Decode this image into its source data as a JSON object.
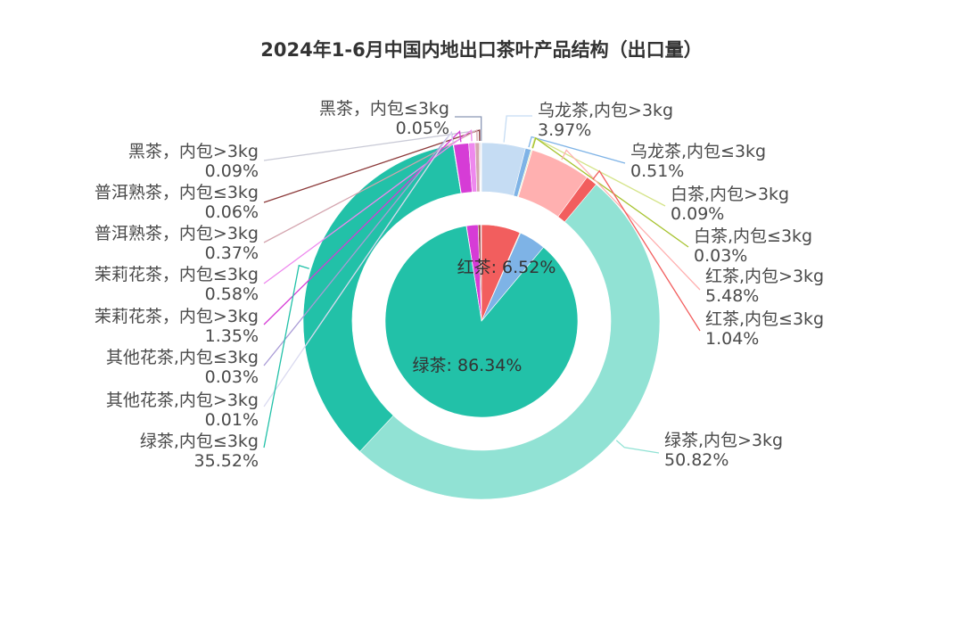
{
  "chart_data": {
    "type": "pie",
    "title": "2024年1-6月中国内地出口茶叶产品结构（出口量）",
    "legend": "none",
    "inner": [
      {
        "name": "黑茶",
        "value": 0.14,
        "color": "#8B6F5E"
      },
      {
        "name": "普洱熟茶",
        "value": 0.43,
        "color": "#9C4A4A"
      },
      {
        "name": "茉莉花茶",
        "value": 1.93,
        "color": "#D63CD6"
      },
      {
        "name": "其他花茶",
        "value": 0.04,
        "color": "#9E8FCF"
      },
      {
        "name": "绿茶",
        "value": 86.34,
        "color": "#22C1A8",
        "label": "绿茶: 86.34%"
      },
      {
        "name": "乌龙茶",
        "value": 4.48,
        "color": "#7EB3E6"
      },
      {
        "name": "白茶",
        "value": 0.12,
        "color": "#A7C330"
      },
      {
        "name": "红茶",
        "value": 6.52,
        "color": "#F25E5E",
        "label": "红茶: 6.52%"
      }
    ],
    "outer": [
      {
        "name": "黑茶，内包≤3kg",
        "value": 0.05,
        "label": "0.05%",
        "color": "#8A97B5"
      },
      {
        "name": "黑茶，内包>3kg",
        "value": 0.09,
        "label": "0.09%",
        "color": "#C9CAD6"
      },
      {
        "name": "普洱熟茶，内包≤3kg",
        "value": 0.06,
        "label": "0.06%",
        "color": "#8C3A3A"
      },
      {
        "name": "普洱熟茶，内包>3kg",
        "value": 0.37,
        "label": "0.37%",
        "color": "#D4A5AF"
      },
      {
        "name": "茉莉花茶，内包≤3kg",
        "value": 0.58,
        "label": "0.58%",
        "color": "#EE88EE"
      },
      {
        "name": "茉莉花茶，内包>3kg",
        "value": 1.35,
        "label": "1.35%",
        "color": "#D63CD6"
      },
      {
        "name": "其他花茶,内包≤3kg",
        "value": 0.03,
        "label": "0.03%",
        "color": "#A99BD6"
      },
      {
        "name": "其他花茶,内包>3kg",
        "value": 0.01,
        "label": "0.01%",
        "color": "#DADAF0"
      },
      {
        "name": "绿茶,内包≤3kg",
        "value": 35.52,
        "label": "35.52%",
        "color": "#22C1A8"
      },
      {
        "name": "绿茶,内包>3kg",
        "value": 50.82,
        "label": "50.82%",
        "color": "#91E2D4"
      },
      {
        "name": "乌龙茶,内包>3kg",
        "value": 3.97,
        "label": "3.97%",
        "color": "#C5DCF3"
      },
      {
        "name": "乌龙茶,内包≤3kg",
        "value": 0.51,
        "label": "0.51%",
        "color": "#7EB3E6"
      },
      {
        "name": "白茶,内包>3kg",
        "value": 0.09,
        "label": "0.09%",
        "color": "#D5E48A"
      },
      {
        "name": "白茶,内包≤3kg",
        "value": 0.03,
        "label": "0.03%",
        "color": "#A7C330"
      },
      {
        "name": "红茶,内包>3kg",
        "value": 5.48,
        "label": "5.48%",
        "color": "#FFB0B0"
      },
      {
        "name": "红茶,内包≤3kg",
        "value": 1.04,
        "label": "1.04%",
        "color": "#F25E5E"
      }
    ]
  }
}
